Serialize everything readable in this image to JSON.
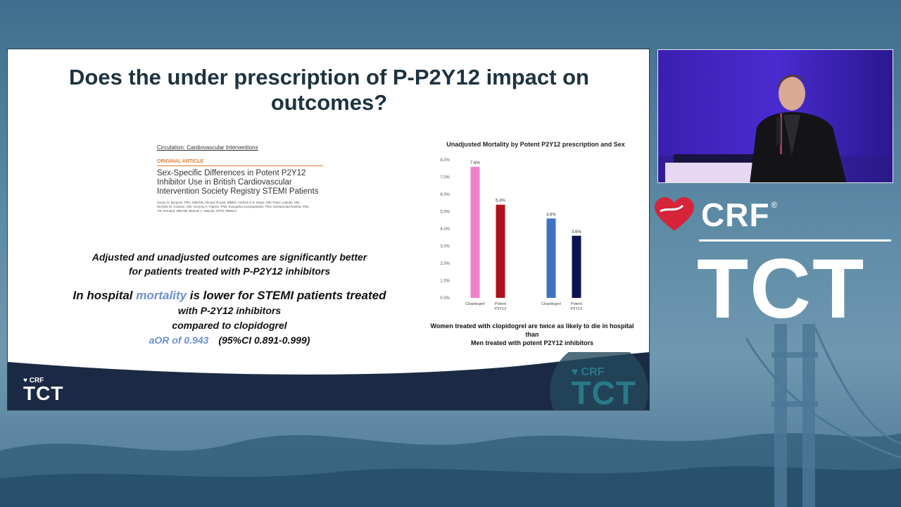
{
  "slide": {
    "title": "Does the under prescription of P-P2Y12  impact on outcomes?",
    "article": {
      "journal": "Circulation: Cardiovascular Interventions",
      "tag": "ORIGINAL ARTICLE",
      "title": "Sex-Specific Differences in Potent P2Y12 Inhibitor Use in British Cardiovascular Intervention Society Registry STEMI Patients",
      "authors": "Sonya N. Burgess, PhD, MBChB; Ahmad Shoaib, MBBS; Andrew S.P. Sharp, MD; Peter Ludman, MD; Nicholls M. Graham, MD; Gemma A. Figtree, PhD; Evangelos Kontopantelis, PhD; Muhammad Rashid, PhD; Tim Kinnaird, MBChB; Mamas A. Mamas, DPhil, MBBCh"
    },
    "claims": {
      "line1": "Adjusted and unadjusted outcomes are significantly better",
      "line2": "for patients treated with P-P2Y12 inhibitors",
      "mortality_pre": "In hospital ",
      "mortality_word": "mortality",
      "mortality_post": " is lower for STEMI patients treated",
      "mortality_line2": "with P-2Y12 inhibitors",
      "mortality_line3": "compared to clopidogrel",
      "aor": "aOR of 0.943",
      "ci": "(95%CI 0.891-0.999)"
    },
    "chart_caption": {
      "line1": "Women treated with clopidogrel are twice as likely to die in hospital",
      "line2": "than",
      "line3": "Men treated with potent P2Y12 inhibitors"
    },
    "footer": {
      "crf": "CRF",
      "tct": "TCT"
    }
  },
  "chart_data": {
    "type": "bar",
    "title": "Unadjusted Mortality by Potent P2Y12 prescription and Sex",
    "ylim": [
      0,
      8
    ],
    "yticks": [
      "0.0%",
      "1.0%",
      "2.0%",
      "3.0%",
      "4.0%",
      "5.0%",
      "6.0%",
      "7.0%",
      "8.0%"
    ],
    "bars": [
      {
        "category": "Clopidogrel",
        "category_line2": "",
        "value": 7.6,
        "label": "7.6%",
        "color": "#f47fcf"
      },
      {
        "category": "Potent",
        "category_line2": "P2Y12",
        "value": 5.4,
        "label": "5.4%",
        "color": "#b0121c"
      },
      {
        "category": "Clopidogrel",
        "category_line2": "",
        "value": 4.6,
        "label": "4.6%",
        "color": "#3f72c4"
      },
      {
        "category": "Potent",
        "category_line2": "P2Y12",
        "value": 3.6,
        "label": "3.6%",
        "color": "#0c1250"
      }
    ],
    "grid": false
  },
  "brand": {
    "crf": "CRF",
    "registered": "®",
    "tct": "TCT"
  },
  "colors": {
    "title": "#1d3340",
    "highlight": "#6d8fd1",
    "video_bg": "#4a2bd0",
    "footer_navy": "#1b2a44",
    "heart_red": "#d6243a"
  }
}
